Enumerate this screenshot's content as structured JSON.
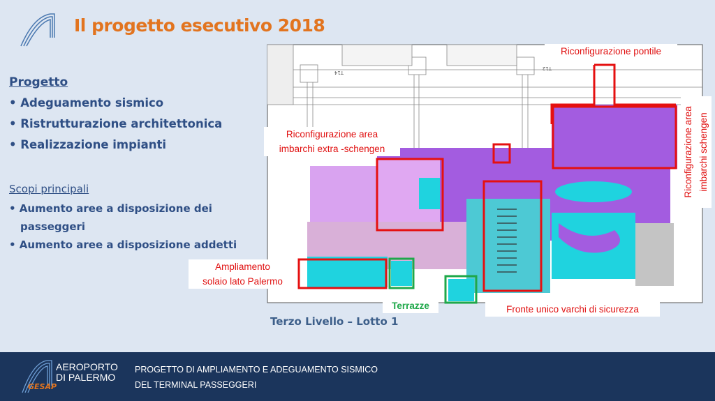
{
  "header": {
    "title": "Il progetto esecutivo 2018"
  },
  "left": {
    "heading": "Progetto",
    "items": [
      "• Adeguamento sismico",
      "• Ristrutturazione architettonica",
      "• Realizzazione impianti"
    ],
    "subheading": "Scopi principali",
    "subitems": [
      "• Aumento aree a disposizione dei",
      "passeggeri",
      "• Aumento aree a disposizione addetti"
    ]
  },
  "plan": {
    "caption": "Terzo Livello – Lotto 1",
    "labels": {
      "pontile": "Riconfigurazione pontile",
      "extra1": "Riconfigurazione area",
      "extra2": "imbarchi extra -schengen",
      "schengen1": "Riconfigurazione area",
      "schengen2": "imbarchi schengen",
      "amp1": "Ampliamento",
      "amp2": "solaio lato Palermo",
      "terrazze": "Terrazze",
      "fronte": "Fronte unico varchi di sicurezza"
    },
    "gate_labels": [
      "T14",
      "T12"
    ],
    "colors": {
      "purple": "#a35ce0",
      "lavender": "#d9a3f0",
      "pink": "#d9b0d8",
      "cyan": "#1fd3df",
      "gray": "#c4c4c4",
      "red": "#e51010",
      "green": "#1fa84a"
    }
  },
  "footer": {
    "logo_line1": "AEROPORTO",
    "logo_line2": "DI PALERMO",
    "logo_brand": "GESAP",
    "line1": "PROGETTO DI AMPLIAMENTO E ADEGUAMENTO SISMICO",
    "line2": "DEL TERMINAL PASSEGGERI"
  }
}
